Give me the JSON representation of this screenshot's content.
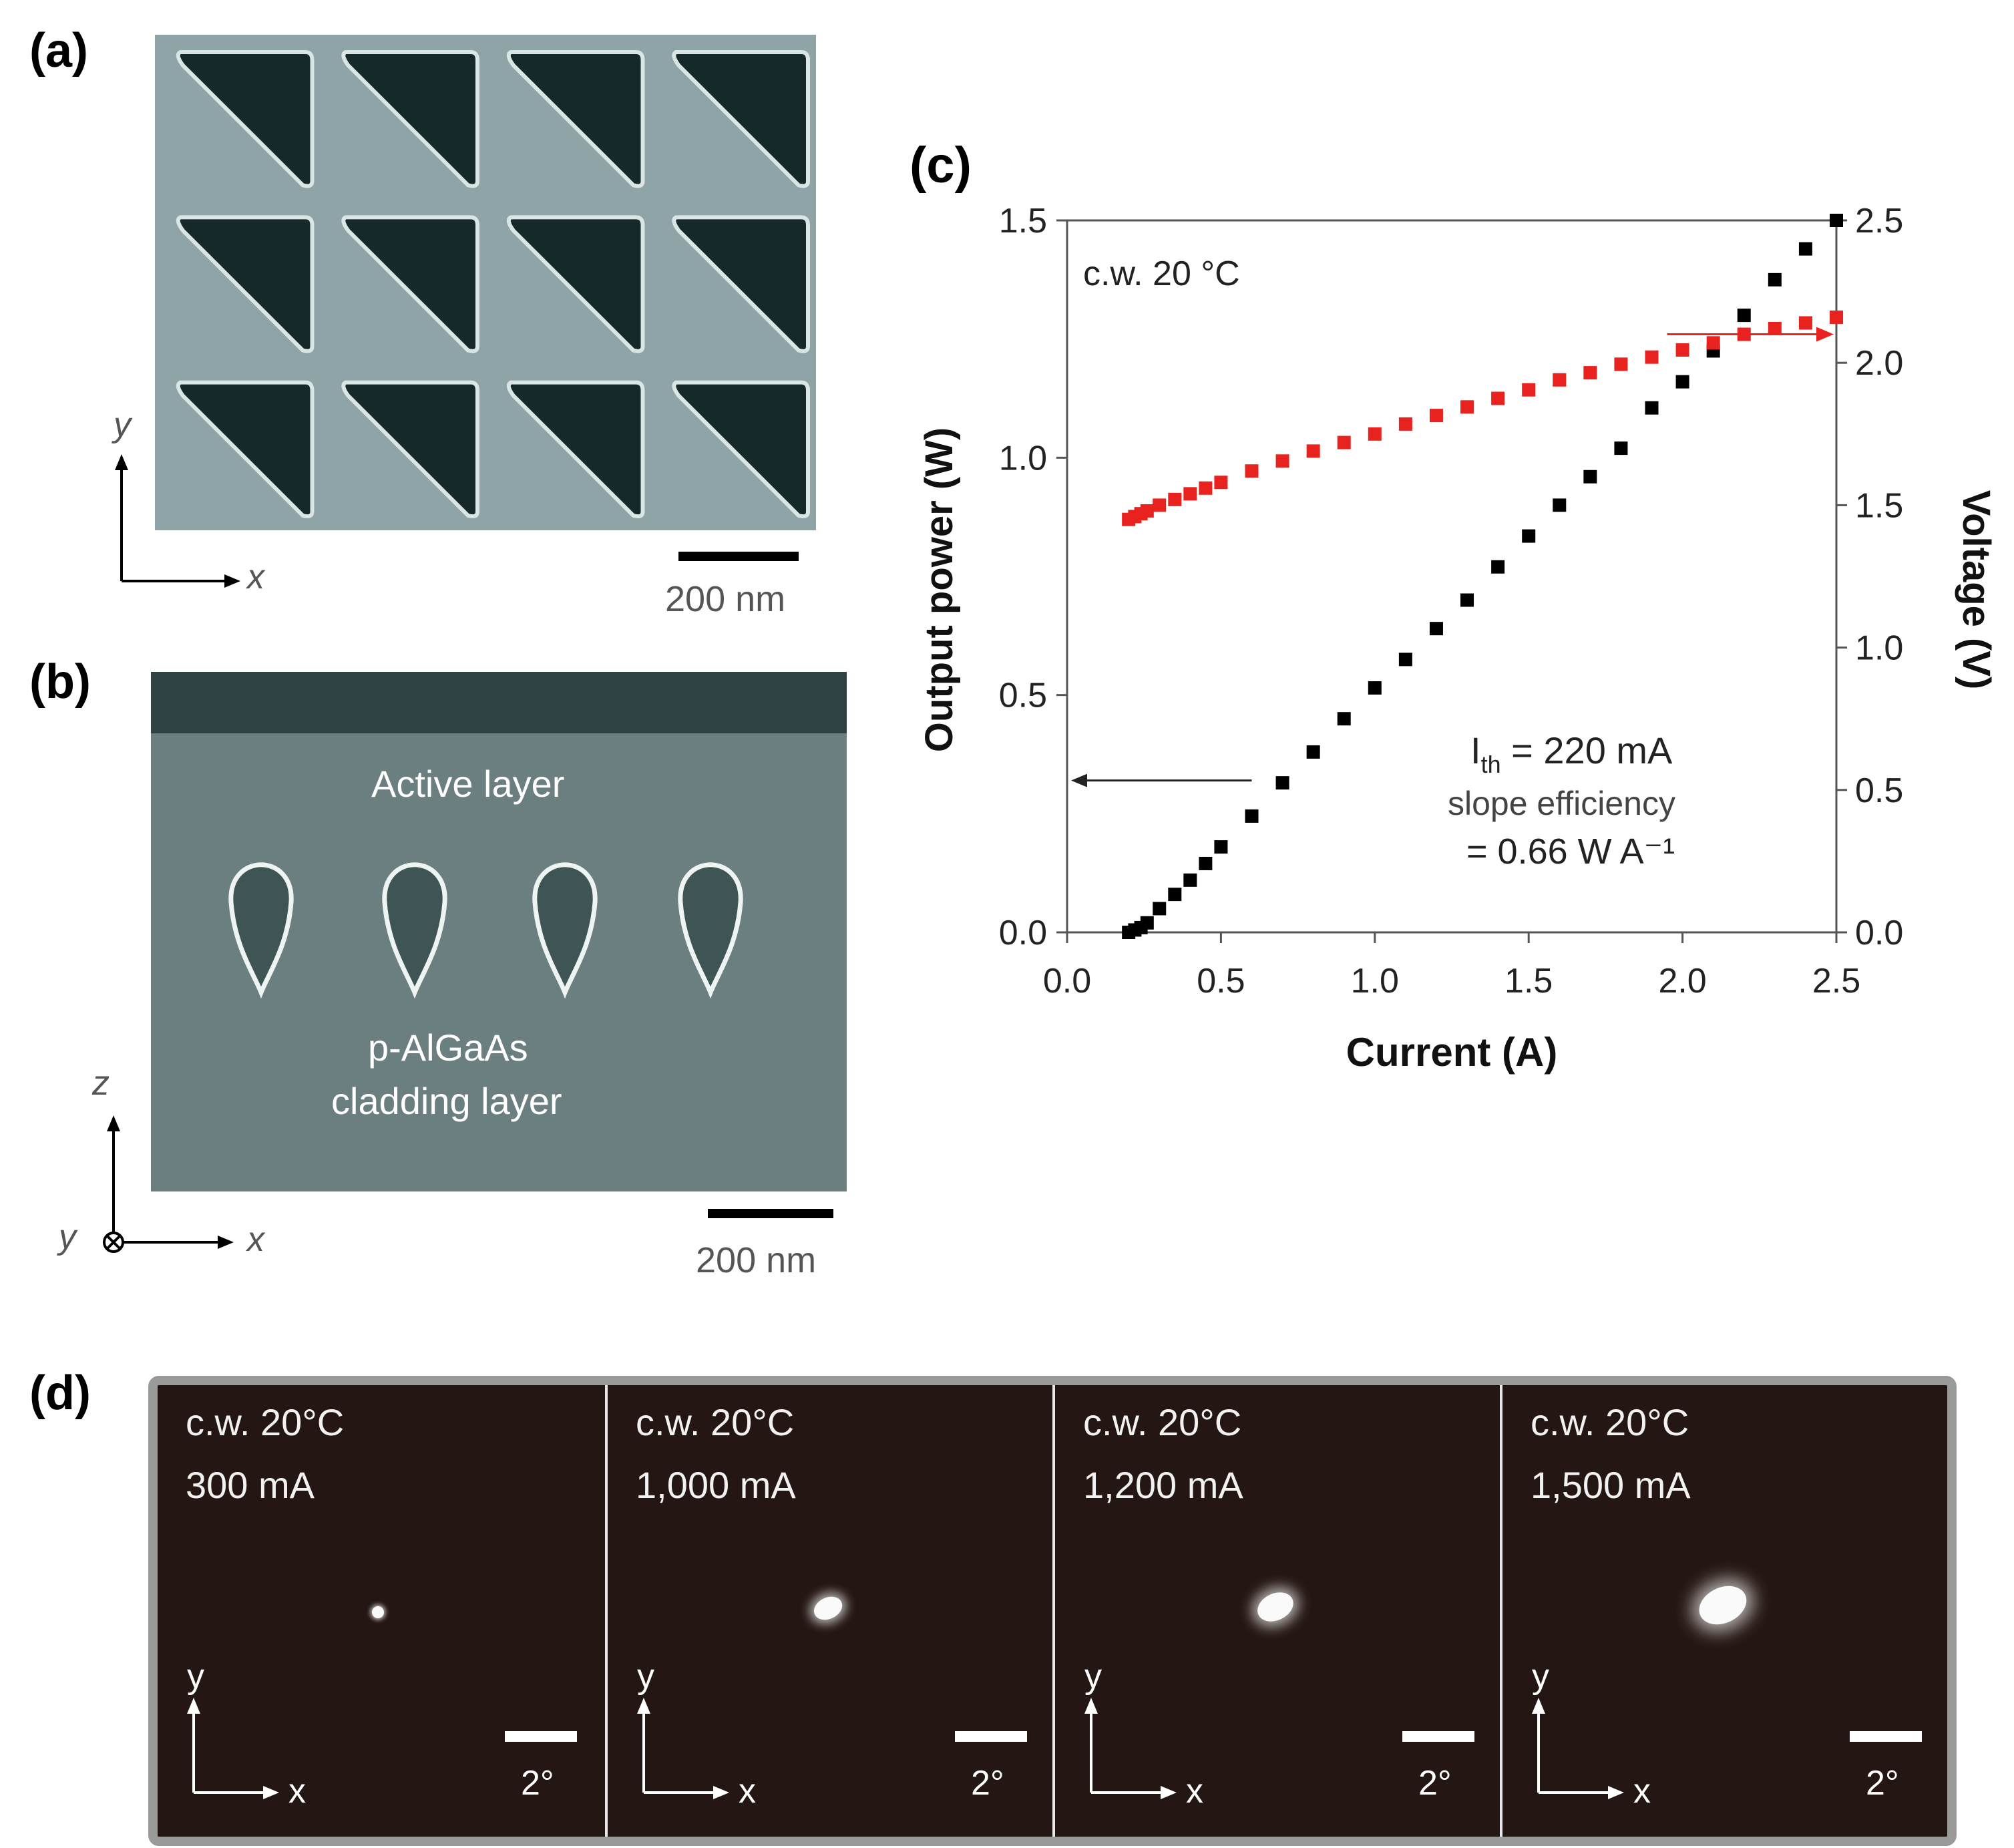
{
  "panels": {
    "a": {
      "label": "(a)",
      "axis_y": "y",
      "axis_x": "x",
      "scale_bar": "200 nm"
    },
    "b": {
      "label": "(b)",
      "layer_top": "Active layer",
      "layer_bottom_line1": "p-AlGaAs",
      "layer_bottom_line2": "cladding layer",
      "axis_z": "z",
      "axis_x": "x",
      "axis_y": "y",
      "scale_bar": "200 nm"
    },
    "c": {
      "label": "(c)",
      "condition": "c.w. 20 °C",
      "threshold_label": "I",
      "threshold_sub": "th",
      "threshold_value": " = 220 mA",
      "slope_label": "slope efficiency",
      "slope_value": "= 0.66 W A⁻¹"
    },
    "d": {
      "label": "(d)",
      "frames": [
        {
          "cond": "c.w. 20°C",
          "current": "300 mA",
          "spot": 1
        },
        {
          "cond": "c.w. 20°C",
          "current": "1,000 mA",
          "spot": 2
        },
        {
          "cond": "c.w. 20°C",
          "current": "1,200 mA",
          "spot": 3
        },
        {
          "cond": "c.w. 20°C",
          "current": "1,500 mA",
          "spot": 4
        }
      ],
      "axis_x": "x",
      "axis_y": "y",
      "scale_bar": "2°"
    }
  },
  "chart_data": {
    "type": "scatter",
    "xlabel": "Current (A)",
    "ylabel": "Output power (W)",
    "y2label": "Voltage (V)",
    "xlim": [
      0,
      2.5
    ],
    "ylim": [
      0,
      1.5
    ],
    "y2lim": [
      0,
      2.5
    ],
    "xticks": [
      "0.0",
      "0.5",
      "1.0",
      "1.5",
      "2.0",
      "2.5"
    ],
    "yticks": [
      "0.0",
      "0.5",
      "1.0",
      "1.5"
    ],
    "y2ticks": [
      "0.0",
      "0.5",
      "1.0",
      "1.5",
      "2.0",
      "2.5"
    ],
    "series": [
      {
        "name": "Output power",
        "axis": "left",
        "color": "#000000",
        "x": [
          0.2,
          0.22,
          0.24,
          0.26,
          0.3,
          0.35,
          0.4,
          0.45,
          0.5,
          0.6,
          0.7,
          0.8,
          0.9,
          1.0,
          1.1,
          1.2,
          1.3,
          1.4,
          1.5,
          1.6,
          1.7,
          1.8,
          1.9,
          2.0,
          2.1,
          2.2,
          2.3,
          2.4,
          2.5
        ],
        "y": [
          0.0,
          0.005,
          0.01,
          0.02,
          0.05,
          0.08,
          0.11,
          0.145,
          0.18,
          0.245,
          0.315,
          0.38,
          0.45,
          0.515,
          0.575,
          0.64,
          0.7,
          0.77,
          0.835,
          0.9,
          0.96,
          1.02,
          1.105,
          1.16,
          1.225,
          1.3,
          1.375,
          1.44,
          1.5
        ]
      },
      {
        "name": "Voltage",
        "axis": "right",
        "color": "#e8221e",
        "x": [
          0.2,
          0.22,
          0.24,
          0.26,
          0.3,
          0.35,
          0.4,
          0.45,
          0.5,
          0.6,
          0.7,
          0.8,
          0.9,
          1.0,
          1.1,
          1.2,
          1.3,
          1.4,
          1.5,
          1.6,
          1.7,
          1.8,
          1.9,
          2.0,
          2.1,
          2.2,
          2.3,
          2.4,
          2.5
        ],
        "y": [
          1.45,
          1.46,
          1.47,
          1.48,
          1.5,
          1.52,
          1.54,
          1.56,
          1.58,
          1.62,
          1.655,
          1.69,
          1.72,
          1.75,
          1.785,
          1.815,
          1.845,
          1.875,
          1.905,
          1.94,
          1.965,
          1.995,
          2.02,
          2.045,
          2.07,
          2.1,
          2.12,
          2.14,
          2.16
        ]
      }
    ],
    "annotations": [
      "c.w. 20 °C",
      "I_th = 220 mA",
      "slope efficiency",
      "= 0.66 W A⁻¹"
    ]
  }
}
